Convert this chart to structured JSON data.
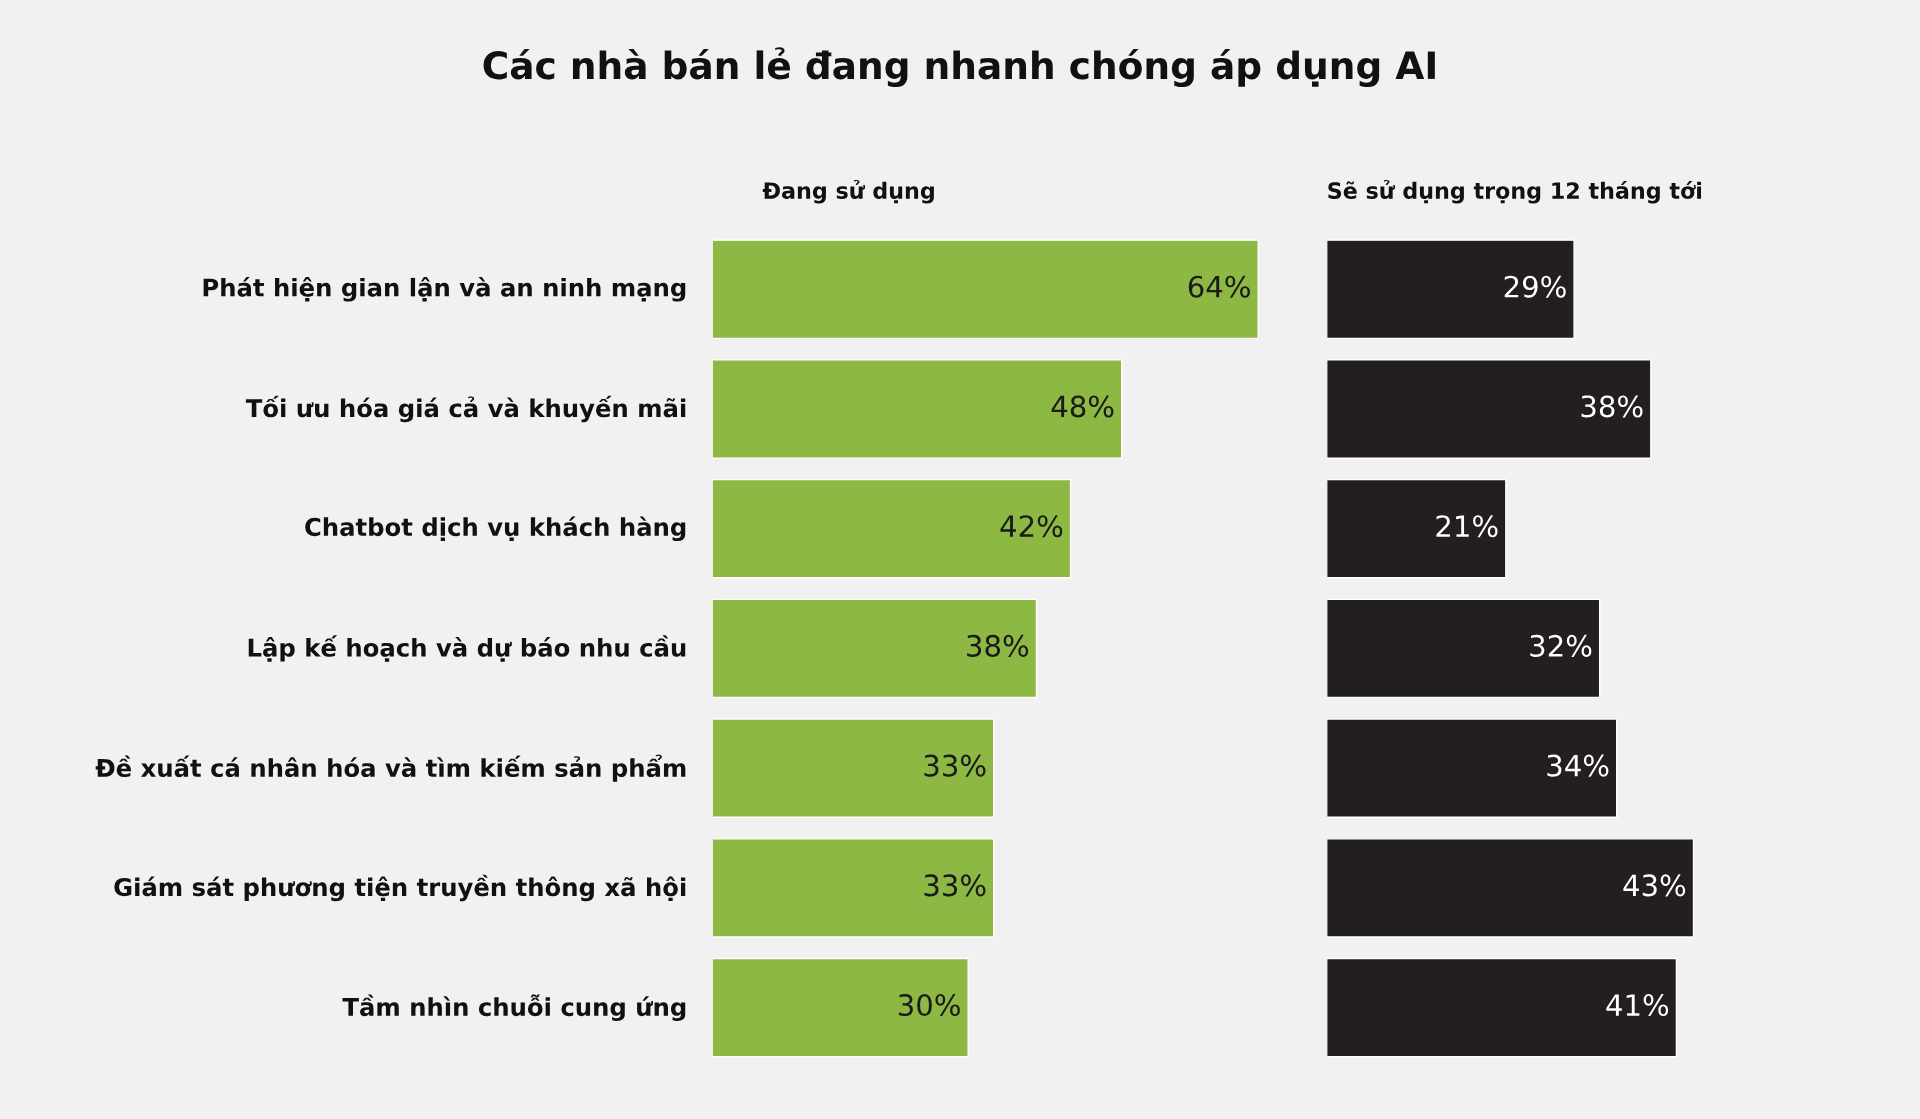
{
  "chart_data": [
    {
      "type": "bar",
      "orientation": "horizontal",
      "title": "Các nhà bán lẻ đang nhanh chóng áp dụng AI",
      "categories": [
        "Phát hiện gian lận và an ninh mạng",
        "Tối ưu hóa giá cả và khuyến mãi",
        "Chatbot dịch vụ khách hàng",
        "Lập kế hoạch và dự báo nhu cầu",
        "Đề xuất cá nhân hóa và tìm kiếm sản phẩm",
        "Giám sát phương tiện truyền thông xã hội",
        "Tầm nhìn chuỗi cung ứng"
      ],
      "series": [
        {
          "name": "Đang sử dụng",
          "color": "#8db843",
          "values": [
            64,
            48,
            42,
            38,
            33,
            33,
            30
          ],
          "value_labels": [
            "64%",
            "48%",
            "42%",
            "38%",
            "33%",
            "33%",
            "30%"
          ]
        }
      ]
    },
    {
      "type": "bar",
      "orientation": "horizontal",
      "categories": [
        null,
        null,
        null,
        null,
        null,
        null,
        null
      ],
      "series": [
        {
          "name": "Sẽ sử dụng trọng 12 tháng tới",
          "color": "#231f20",
          "values": [
            29,
            38,
            21,
            32,
            34,
            43,
            41
          ],
          "value_labels": [
            "29%",
            "38%",
            "21%",
            "32%",
            "34%",
            "43%",
            "41%"
          ]
        }
      ]
    }
  ]
}
